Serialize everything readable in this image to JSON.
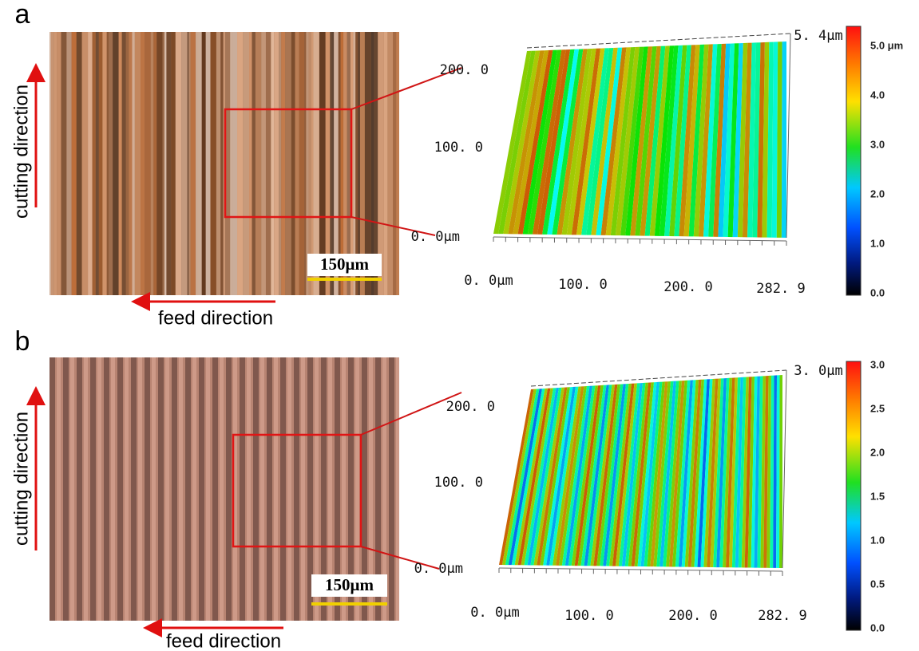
{
  "panels": [
    {
      "label": "a",
      "y_axis_label": "cutting direction",
      "x_axis_label": "feed direction",
      "scale_bar": "150μm",
      "surface": {
        "max_height": "5. 4μm",
        "y_labels": [
          "200. 0",
          "100. 0",
          "0. 0μm"
        ],
        "x_labels": [
          "0. 0μm",
          "100. 0",
          "200. 0",
          "282. 9"
        ]
      },
      "colorbar": [
        "5.0 μm",
        "4.0",
        "3.0",
        "2.0",
        "1.0",
        "0.0"
      ]
    },
    {
      "label": "b",
      "y_axis_label": "cutting direction",
      "x_axis_label": "feed direction",
      "scale_bar": "150μm",
      "surface": {
        "max_height": "3. 0μm",
        "y_labels": [
          "200. 0",
          "100. 0",
          "0. 0μm"
        ],
        "x_labels": [
          "0. 0μm",
          "100. 0",
          "200. 0",
          "282. 9"
        ]
      },
      "colorbar": [
        "3.0",
        "2.5",
        "2.0",
        "1.5",
        "1.0",
        "0.5",
        "0.0"
      ]
    }
  ]
}
